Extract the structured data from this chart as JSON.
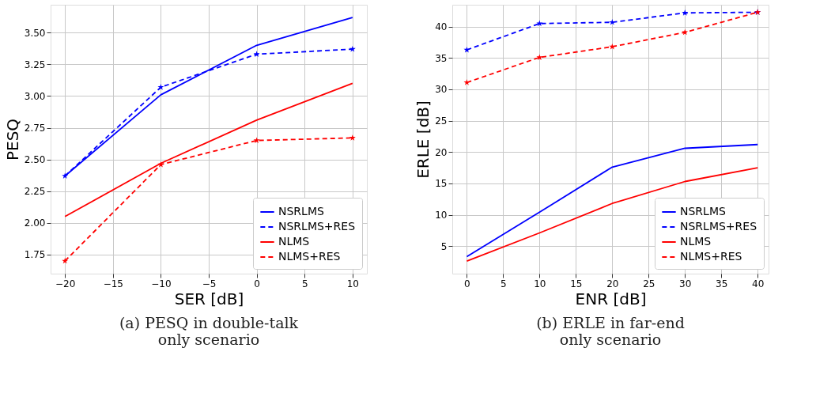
{
  "chart_data": [
    {
      "type": "line",
      "title": "(a) PESQ in double-talk\nonly scenario",
      "xlabel": "SER [dB]",
      "ylabel": "PESQ",
      "x": [
        -20,
        -10,
        0,
        10
      ],
      "series": [
        {
          "name": "NSRLMS",
          "color": "#0000ff",
          "values": [
            2.37,
            3.01,
            3.4,
            3.62
          ],
          "line_style": "solid",
          "marker": "none"
        },
        {
          "name": "NSRLMS+RES",
          "color": "#0000ff",
          "values": [
            2.37,
            3.07,
            3.33,
            3.37
          ],
          "line_style": "dashed",
          "marker": "star"
        },
        {
          "name": "NLMS",
          "color": "#ff0000",
          "values": [
            2.05,
            2.47,
            2.81,
            3.1
          ],
          "line_style": "solid",
          "marker": "none"
        },
        {
          "name": "NLMS+RES",
          "color": "#ff0000",
          "values": [
            1.7,
            2.46,
            2.65,
            2.67
          ],
          "line_style": "dashed",
          "marker": "star"
        }
      ],
      "xlim": [
        -21.5,
        11.5
      ],
      "ylim": [
        1.6,
        3.72
      ],
      "xticks": [
        {
          "value": -20,
          "label": "−20"
        },
        {
          "value": -15,
          "label": "−15"
        },
        {
          "value": -10,
          "label": "−10"
        },
        {
          "value": -5,
          "label": "−5"
        },
        0,
        5,
        10
      ],
      "yticks": [
        {
          "value": 1.75,
          "label": "1.75"
        },
        {
          "value": 2,
          "label": "2.00"
        },
        {
          "value": 2.25,
          "label": "2.25"
        },
        {
          "value": 2.5,
          "label": "2.50"
        },
        {
          "value": 2.75,
          "label": "2.75"
        },
        {
          "value": 3,
          "label": "3.00"
        },
        {
          "value": 3.25,
          "label": "3.25"
        },
        {
          "value": 3.5,
          "label": "3.50"
        }
      ],
      "grid": true,
      "legend": "bottom right"
    },
    {
      "type": "line",
      "title": "(b) ERLE in far-end\nonly scenario",
      "xlabel": "ENR [dB]",
      "ylabel": "ERLE [dB]",
      "x": [
        0,
        10,
        20,
        30,
        40
      ],
      "series": [
        {
          "name": "NSRLMS",
          "color": "#0000ff",
          "values": [
            3.3,
            10.4,
            17.6,
            20.6,
            21.2
          ],
          "line_style": "solid",
          "marker": "none"
        },
        {
          "name": "NSRLMS+RES",
          "color": "#0000ff",
          "values": [
            36.3,
            40.5,
            40.7,
            42.2,
            42.3
          ],
          "line_style": "dashed",
          "marker": "star"
        },
        {
          "name": "NLMS",
          "color": "#ff0000",
          "values": [
            2.6,
            7.1,
            11.8,
            15.3,
            17.5
          ],
          "line_style": "solid",
          "marker": "none"
        },
        {
          "name": "NLMS+RES",
          "color": "#ff0000",
          "values": [
            31.1,
            35.1,
            36.8,
            39.1,
            42.3
          ],
          "line_style": "dashed",
          "marker": "star"
        }
      ],
      "xlim": [
        -2,
        41.5
      ],
      "ylim": [
        0.6,
        43.5
      ],
      "xticks": [
        0,
        5,
        10,
        15,
        20,
        25,
        30,
        35,
        40
      ],
      "yticks": [
        5,
        10,
        15,
        20,
        25,
        30,
        35,
        40
      ],
      "grid": true,
      "legend": "bottom right"
    }
  ]
}
